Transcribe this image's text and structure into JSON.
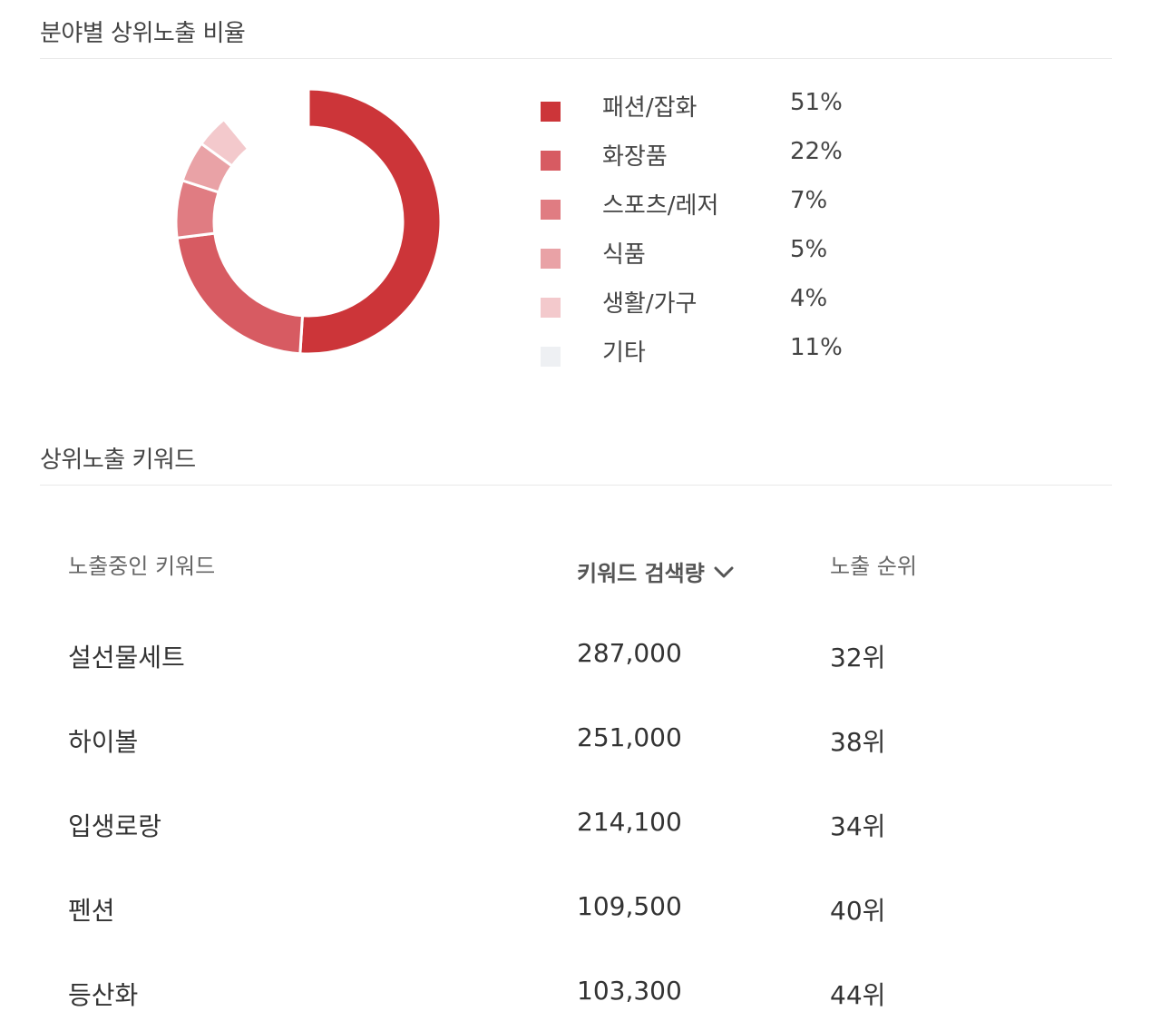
{
  "section1": {
    "title": "분야별 상위노출 비율"
  },
  "chart_data": {
    "type": "pie",
    "title": "분야별 상위노출 비율",
    "categories": [
      "패션/잡화",
      "화장품",
      "스포츠/레저",
      "식품",
      "생활/가구",
      "기타"
    ],
    "values": [
      51,
      22,
      7,
      5,
      4,
      11
    ],
    "value_labels": [
      "51%",
      "22%",
      "7%",
      "5%",
      "4%",
      "11%"
    ],
    "colors": [
      "#cc3539",
      "#d75b62",
      "#e07c82",
      "#e9a2a6",
      "#f3c9cc",
      "#ffffff"
    ],
    "legend_colors": [
      "#cc3539",
      "#d75b62",
      "#e07c82",
      "#e9a2a6",
      "#f3c9cc",
      "#eef0f3"
    ],
    "legend_placement": "right",
    "donut": true
  },
  "section2": {
    "title": "상위노출 키워드"
  },
  "table": {
    "headers": {
      "keyword": "노출중인 키워드",
      "volume": "키워드 검색량",
      "rank": "노출 순위"
    },
    "sort_icon": "chevron-down-icon",
    "rows": [
      {
        "keyword": "설선물세트",
        "volume": "287,000",
        "rank": "32위"
      },
      {
        "keyword": "하이볼",
        "volume": "251,000",
        "rank": "38위"
      },
      {
        "keyword": "입생로랑",
        "volume": "214,100",
        "rank": "34위"
      },
      {
        "keyword": "펜션",
        "volume": "109,500",
        "rank": "40위"
      },
      {
        "keyword": "등산화",
        "volume": "103,300",
        "rank": "44위"
      }
    ]
  }
}
